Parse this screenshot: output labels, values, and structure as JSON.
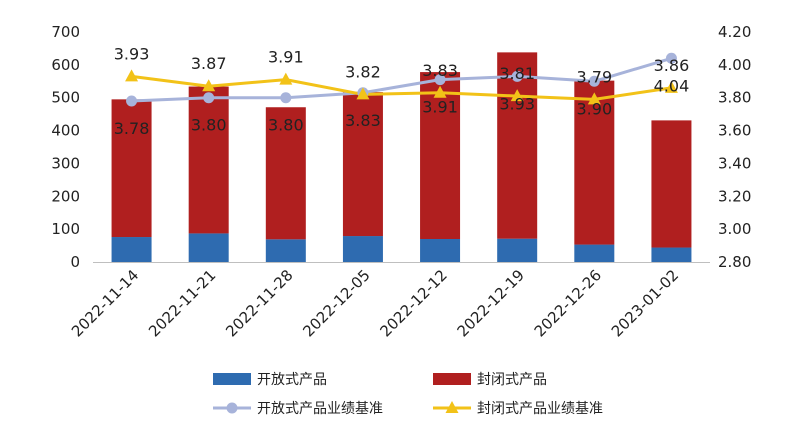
{
  "chart_data": {
    "type": "bar",
    "categories": [
      "2022-11-14",
      "2022-11-21",
      "2022-11-28",
      "2022-12-05",
      "2022-12-12",
      "2022-12-19",
      "2022-12-26",
      "2023-01-02"
    ],
    "left_axis": {
      "ylim": [
        0,
        700
      ],
      "ticks": [
        "0",
        "100",
        "200",
        "300",
        "400",
        "500",
        "600",
        "700"
      ]
    },
    "right_axis": {
      "ylim": [
        2.8,
        4.2
      ],
      "ticks": [
        "2.80",
        "3.00",
        "3.20",
        "3.40",
        "3.60",
        "3.80",
        "4.00",
        "4.20"
      ]
    },
    "series": [
      {
        "name": "开放式产品",
        "type": "bar",
        "stack": true,
        "axis": "left",
        "color": "#2E6BB0",
        "values": [
          76,
          87,
          69,
          79,
          70,
          71,
          53,
          44
        ]
      },
      {
        "name": "封闭式产品",
        "type": "bar",
        "stack": true,
        "axis": "left",
        "color": "#B01F1F",
        "values": [
          419,
          447,
          402,
          438,
          508,
          567,
          499,
          387
        ]
      },
      {
        "name": "开放式产品业绩基准",
        "type": "line",
        "axis": "right",
        "color": "#A7B3DA",
        "marker": "circle",
        "values": [
          3.78,
          3.8,
          3.8,
          3.83,
          3.91,
          3.93,
          3.9,
          4.04
        ],
        "labels": [
          "3.78",
          "3.80",
          "3.80",
          "3.83",
          "3.91",
          "3.93",
          "3.90",
          "4.04"
        ]
      },
      {
        "name": "封闭式产品业绩基准",
        "type": "line",
        "axis": "right",
        "color": "#F2C218",
        "marker": "triangle",
        "values": [
          3.93,
          3.87,
          3.91,
          3.82,
          3.83,
          3.81,
          3.79,
          3.86
        ],
        "labels": [
          "3.93",
          "3.87",
          "3.91",
          "3.82",
          "3.83",
          "3.81",
          "3.79",
          "3.86"
        ]
      }
    ],
    "legend_position": "bottom",
    "grid": false
  }
}
